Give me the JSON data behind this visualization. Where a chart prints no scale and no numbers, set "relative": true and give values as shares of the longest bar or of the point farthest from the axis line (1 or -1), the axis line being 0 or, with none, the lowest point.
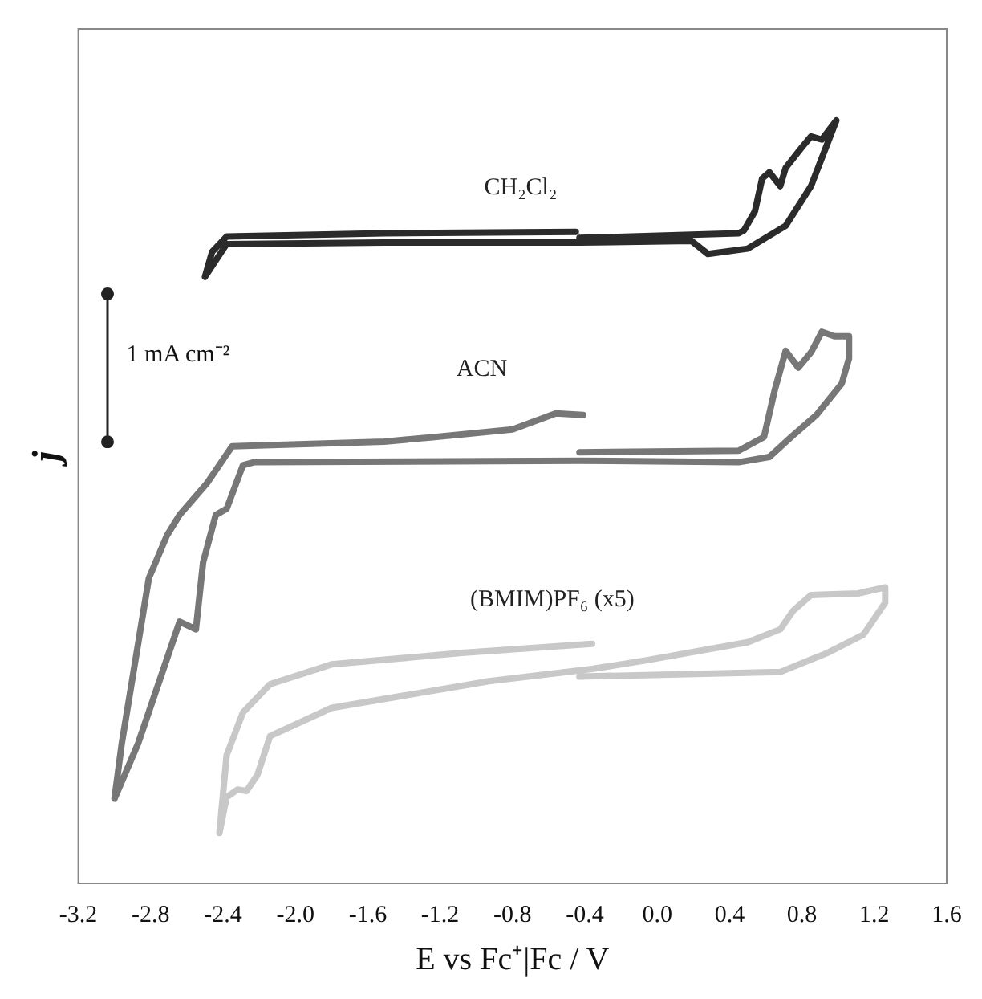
{
  "chart_data": {
    "type": "line",
    "relative": true,
    "xlabel": "E vs Fc⁺|Fc / V",
    "ylabel": "j",
    "xlim": [
      -3.2,
      1.6
    ],
    "xticks": [
      {
        "value": -3.2,
        "label": "-3.2"
      },
      {
        "value": -2.8,
        "label": "-2.8"
      },
      {
        "value": -2.4,
        "label": "-2.4"
      },
      {
        "value": -2.0,
        "label": "-2.0"
      },
      {
        "value": -1.6,
        "label": "-1.6"
      },
      {
        "value": -1.2,
        "label": "-1.2"
      },
      {
        "value": -0.8,
        "label": "-0.8"
      },
      {
        "value": -0.4,
        "label": "-0.4"
      },
      {
        "value": 0,
        "label": "0.0"
      },
      {
        "value": 0.4,
        "label": "0.4"
      },
      {
        "value": 0.8,
        "label": "0.8"
      },
      {
        "value": 1.2,
        "label": "1.2"
      },
      {
        "value": 1.6,
        "label": "1.6"
      }
    ],
    "tick_labels": "x",
    "grid": false,
    "legend": false,
    "annotations": [
      "1 mA cm⁻²"
    ],
    "series": [
      {
        "name": "CH₂Cl₂",
        "color": "#2b2b2b",
        "x": [
          -0.43,
          0.45,
          0.48,
          0.54,
          0.58,
          0.62,
          0.68,
          0.71,
          0.8,
          0.85,
          0.91,
          0.99,
          0.85,
          0.71,
          0.5,
          0.28,
          0.19,
          -0.43,
          -1.51,
          -2.38,
          -2.5,
          -2.46,
          -2.38,
          -1.51,
          -0.45
        ],
        "values": [
          0.846,
          0.852,
          0.856,
          0.881,
          0.924,
          0.932,
          0.914,
          0.938,
          0.965,
          0.979,
          0.975,
          1.0,
          0.914,
          0.862,
          0.832,
          0.825,
          0.842,
          0.84,
          0.84,
          0.838,
          0.795,
          0.828,
          0.848,
          0.852,
          0.854
        ]
      },
      {
        "name": "ACN",
        "color": "#777777",
        "x": [
          -0.43,
          0.45,
          0.59,
          0.65,
          0.71,
          0.78,
          0.85,
          0.91,
          0.98,
          1.06,
          1.06,
          1.02,
          0.88,
          0.74,
          0.62,
          0.45,
          -0.43,
          -2.23,
          -2.29,
          -2.38,
          -2.44,
          -2.51,
          -2.55,
          -2.64,
          -2.87,
          -3.0,
          -2.96,
          -2.81,
          -2.71,
          -2.64,
          -2.49,
          -2.35,
          -1.51,
          -1.23,
          -0.8,
          -0.56,
          -0.41
        ],
        "values": [
          0.565,
          0.567,
          0.585,
          0.647,
          0.698,
          0.676,
          0.696,
          0.723,
          0.717,
          0.717,
          0.688,
          0.655,
          0.614,
          0.585,
          0.559,
          0.552,
          0.554,
          0.552,
          0.548,
          0.491,
          0.483,
          0.421,
          0.333,
          0.343,
          0.183,
          0.111,
          0.183,
          0.4,
          0.456,
          0.483,
          0.524,
          0.573,
          0.579,
          0.585,
          0.595,
          0.616,
          0.614
        ]
      },
      {
        "name": "(BMIM)PF₆ (x5)",
        "color": "#c8c8c8",
        "x": [
          -0.43,
          0.68,
          0.94,
          1.14,
          1.26,
          1.26,
          1.11,
          0.85,
          0.75,
          0.68,
          0.5,
          -0.07,
          -0.36,
          -0.93,
          -1.8,
          -2.14,
          -2.21,
          -2.27,
          -2.32,
          -2.38,
          -2.42,
          -2.38,
          -2.29,
          -2.14,
          -1.8,
          -1.08,
          -0.36
        ],
        "values": [
          0.271,
          0.277,
          0.302,
          0.326,
          0.368,
          0.388,
          0.38,
          0.378,
          0.357,
          0.333,
          0.316,
          0.292,
          0.281,
          0.265,
          0.23,
          0.193,
          0.142,
          0.121,
          0.123,
          0.113,
          0.066,
          0.168,
          0.224,
          0.261,
          0.287,
          0.302,
          0.314
        ]
      }
    ]
  }
}
